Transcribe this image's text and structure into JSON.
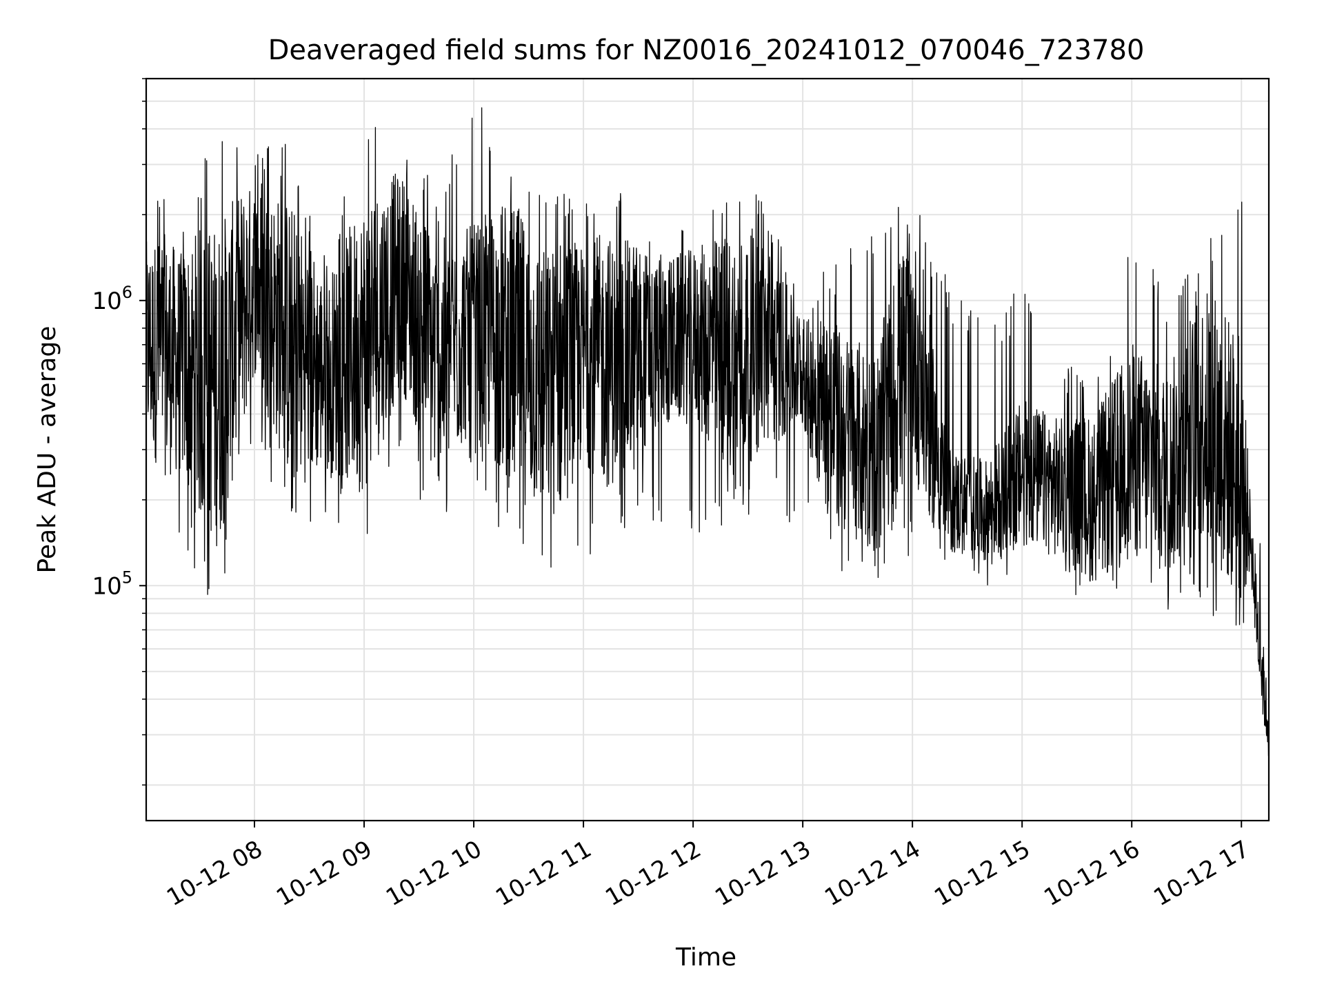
{
  "chart_data": {
    "type": "line",
    "title": "Deaveraged field sums for NZ0016_20241012_070046_723780",
    "xlabel": "Time",
    "ylabel": "Peak ADU - average",
    "yscale": "log",
    "ylim": [
      15000,
      6000000
    ],
    "xlim": [
      "2024-10-12 07:00:46",
      "2024-10-12 17:15:00"
    ],
    "grid": "on (major and minor)",
    "line_color": "#000000",
    "x_tick_labels": [
      "10-12 08",
      "10-12 09",
      "10-12 10",
      "10-12 11",
      "10-12 12",
      "10-12 13",
      "10-12 14",
      "10-12 15",
      "10-12 16",
      "10-12 17"
    ],
    "x_tick_values": [
      "2024-10-12 08:00",
      "2024-10-12 09:00",
      "2024-10-12 10:00",
      "2024-10-12 11:00",
      "2024-10-12 12:00",
      "2024-10-12 13:00",
      "2024-10-12 14:00",
      "2024-10-12 15:00",
      "2024-10-12 16:00",
      "2024-10-12 17:00"
    ],
    "y_ticks": [
      {
        "value": 100000,
        "base": "10",
        "exp": "5"
      },
      {
        "value": 1000000,
        "base": "10",
        "exp": "6"
      }
    ],
    "series": [
      {
        "x": [
          "2024-10-12 07:00",
          "2024-10-12 07:20",
          "2024-10-12 07:40",
          "2024-10-12 08:00",
          "2024-10-12 08:20",
          "2024-10-12 08:40",
          "2024-10-12 09:00",
          "2024-10-12 09:20",
          "2024-10-12 09:40",
          "2024-10-12 10:00",
          "2024-10-12 10:20",
          "2024-10-12 10:40",
          "2024-10-12 11:00",
          "2024-10-12 11:20",
          "2024-10-12 11:40",
          "2024-10-12 12:00",
          "2024-10-12 12:20",
          "2024-10-12 12:40",
          "2024-10-12 13:00",
          "2024-10-12 13:20",
          "2024-10-12 13:40",
          "2024-10-12 14:00",
          "2024-10-12 14:20",
          "2024-10-12 14:40",
          "2024-10-12 15:00",
          "2024-10-12 15:20",
          "2024-10-12 15:40",
          "2024-10-12 16:00",
          "2024-10-12 16:20",
          "2024-10-12 16:40",
          "2024-10-12 17:00",
          "2024-10-12 17:05",
          "2024-10-12 17:10",
          "2024-10-12 17:15"
        ],
        "y": [
          700000,
          600000,
          500000,
          1200000,
          700000,
          550000,
          700000,
          1200000,
          600000,
          800000,
          700000,
          500000,
          650000,
          600000,
          700000,
          750000,
          650000,
          700000,
          550000,
          350000,
          300000,
          700000,
          200000,
          180000,
          250000,
          220000,
          200000,
          300000,
          250000,
          400000,
          250000,
          150000,
          60000,
          30000
        ],
        "min": [
          220000,
          130000,
          80000,
          350000,
          140000,
          180000,
          130000,
          250000,
          150000,
          250000,
          130000,
          110000,
          120000,
          160000,
          150000,
          150000,
          160000,
          180000,
          150000,
          110000,
          100000,
          130000,
          110000,
          100000,
          110000,
          100000,
          75000,
          90000,
          80000,
          80000,
          55000,
          100000,
          35000,
          22000
        ],
        "max": [
          3100000,
          2100000,
          4200000,
          3500000,
          3600000,
          1600000,
          4100000,
          4000000,
          2500000,
          5300000,
          3500000,
          3000000,
          2200000,
          3000000,
          1800000,
          2000000,
          2600000,
          2300000,
          1000000,
          1500000,
          1700000,
          2500000,
          1200000,
          800000,
          1200000,
          700000,
          500000,
          2000000,
          1000000,
          1600000,
          2900000,
          250000,
          150000,
          40000
        ]
      }
    ]
  }
}
